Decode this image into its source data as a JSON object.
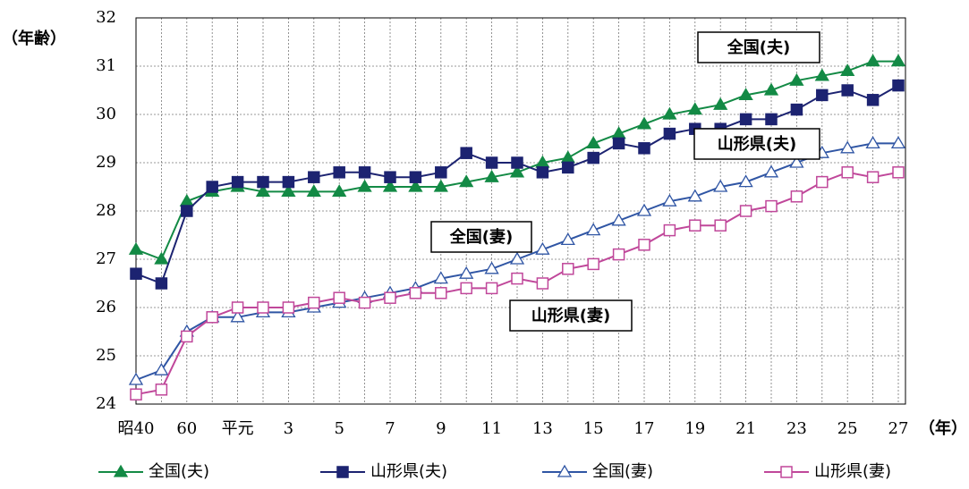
{
  "chart_data": {
    "type": "line",
    "y_label": "（年齢）",
    "x_label": "（年）",
    "categories": [
      "昭40",
      null,
      "60",
      null,
      "平元",
      null,
      "3",
      null,
      "5",
      null,
      "7",
      null,
      "9",
      null,
      "11",
      null,
      "13",
      null,
      "15",
      null,
      "17",
      null,
      "19",
      null,
      "21",
      null,
      "23",
      null,
      "25",
      null,
      "27"
    ],
    "ylim": [
      24,
      32
    ],
    "yticks": [
      24,
      25,
      26,
      27,
      28,
      29,
      30,
      31,
      32
    ],
    "grid": true,
    "series": [
      {
        "name": "全国(夫)",
        "color": "#138a45",
        "marker": "triangle-filled",
        "values": [
          27.2,
          27.0,
          28.2,
          28.4,
          28.5,
          28.4,
          28.4,
          28.4,
          28.4,
          28.5,
          28.5,
          28.5,
          28.5,
          28.6,
          28.7,
          28.8,
          29.0,
          29.1,
          29.4,
          29.6,
          29.8,
          30.0,
          30.1,
          30.2,
          30.4,
          30.5,
          30.7,
          30.8,
          30.9,
          31.1,
          31.1
        ]
      },
      {
        "name": "山形県(夫)",
        "color": "#1c2371",
        "marker": "square-filled",
        "values": [
          26.7,
          26.5,
          28.0,
          28.5,
          28.6,
          28.6,
          28.6,
          28.7,
          28.8,
          28.8,
          28.7,
          28.7,
          28.8,
          29.2,
          29.0,
          29.0,
          28.8,
          28.9,
          29.1,
          29.4,
          29.3,
          29.6,
          29.7,
          29.7,
          29.9,
          29.9,
          30.1,
          30.4,
          30.5,
          30.3,
          30.6
        ]
      },
      {
        "name": "全国(妻)",
        "color": "#2f55a4",
        "marker": "triangle-open",
        "values": [
          24.5,
          24.7,
          25.5,
          25.8,
          25.8,
          25.9,
          25.9,
          26.0,
          26.1,
          26.2,
          26.3,
          26.4,
          26.6,
          26.7,
          26.8,
          27.0,
          27.2,
          27.4,
          27.6,
          27.8,
          28.0,
          28.2,
          28.3,
          28.5,
          28.6,
          28.8,
          29.0,
          29.2,
          29.3,
          29.4,
          29.4
        ]
      },
      {
        "name": "山形県(妻)",
        "color": "#c0479a",
        "marker": "square-open",
        "values": [
          24.2,
          24.3,
          25.4,
          25.8,
          26.0,
          26.0,
          26.0,
          26.1,
          26.2,
          26.1,
          26.2,
          26.3,
          26.3,
          26.4,
          26.4,
          26.6,
          26.5,
          26.8,
          26.9,
          27.1,
          27.3,
          27.6,
          27.7,
          27.7,
          28.0,
          28.1,
          28.3,
          28.6,
          28.8,
          28.7,
          28.8
        ]
      }
    ],
    "annotations": [
      "全国(夫)",
      "山形県(夫)",
      "全国(妻)",
      "山形県(妻)"
    ]
  }
}
